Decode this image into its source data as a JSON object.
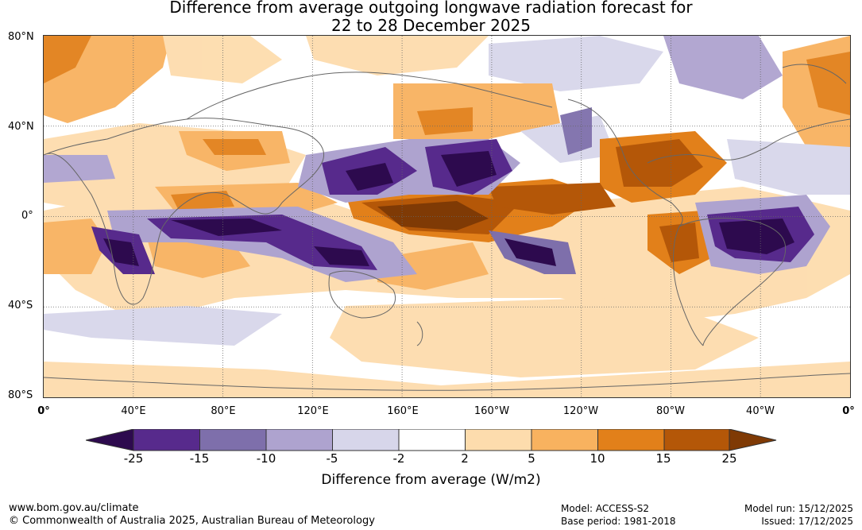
{
  "title": {
    "line1": "Difference from average outgoing longwave radiation forecast for",
    "line2": "22 to 28 December 2025"
  },
  "latitude_labels": [
    "80°N",
    "40°N",
    "0°",
    "40°S",
    "80°S"
  ],
  "longitude_labels": [
    "0°",
    "40°E",
    "80°E",
    "120°E",
    "160°E",
    "160°W",
    "120°W",
    "80°W",
    "40°W",
    "0°"
  ],
  "legend": {
    "ticks": [
      "-25",
      "-15",
      "-10",
      "-5",
      "-2",
      "2",
      "5",
      "10",
      "15",
      "25"
    ],
    "colors": [
      "#2d0a4e",
      "#572a8c",
      "#7e6fab",
      "#aea3cf",
      "#d7d6ea",
      "#ffffff",
      "#fddcad",
      "#f8b25f",
      "#e2801a",
      "#b45708",
      "#7f3a05"
    ],
    "label": "Difference from average (W/m2)"
  },
  "footer": {
    "website": "www.bom.gov.au/climate",
    "copyright": "© Commonwealth of Australia 2025, Australian Bureau of Meteorology",
    "model": "Model: ACCESS-S2",
    "base_period": "Base period: 1981-2018",
    "model_run": "Model run: 15/12/2025",
    "issued": "Issued: 17/12/2025"
  }
}
